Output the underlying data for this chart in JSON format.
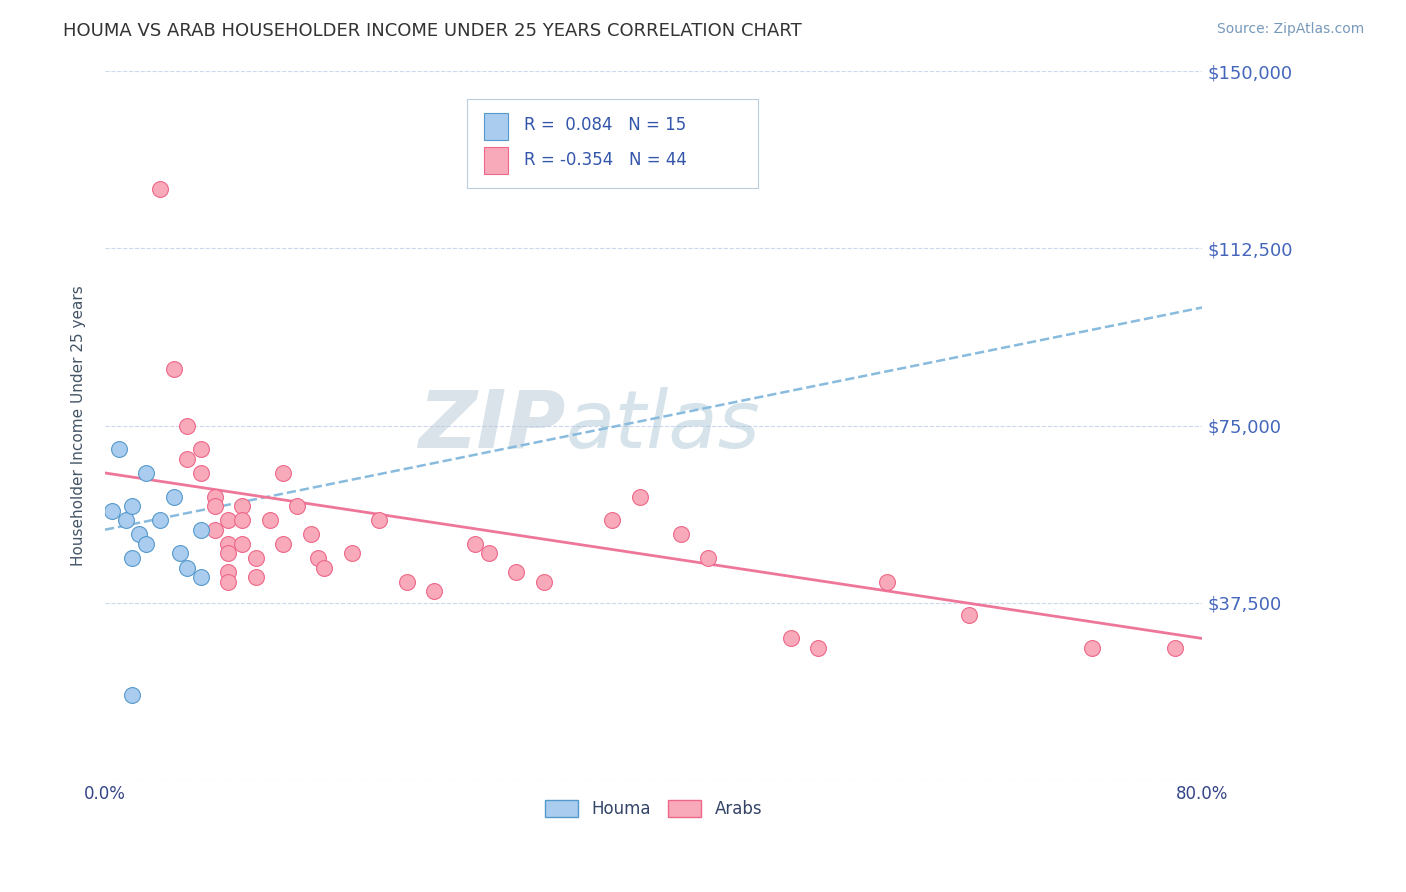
{
  "title": "HOUMA VS ARAB HOUSEHOLDER INCOME UNDER 25 YEARS CORRELATION CHART",
  "source": "Source: ZipAtlas.com",
  "ylabel": "Householder Income Under 25 years",
  "xlim": [
    0.0,
    0.8
  ],
  "ylim": [
    0,
    150000
  ],
  "yticks": [
    0,
    37500,
    75000,
    112500,
    150000
  ],
  "ytick_labels": [
    "",
    "$37,500",
    "$75,000",
    "$112,500",
    "$150,000"
  ],
  "xticks": [
    0.0,
    0.1,
    0.2,
    0.3,
    0.4,
    0.5,
    0.6,
    0.7,
    0.8
  ],
  "xtick_labels": [
    "0.0%",
    "",
    "",
    "",
    "",
    "",
    "",
    "",
    "80.0%"
  ],
  "houma_color": "#aaccee",
  "arab_color": "#f8aabb",
  "houma_edge": "#5599cc",
  "arab_edge": "#ee6688",
  "trend_blue_color": "#88bbdd",
  "trend_pink_color": "#ee7799",
  "R_houma": 0.084,
  "N_houma": 15,
  "R_arab": -0.354,
  "N_arab": 44,
  "watermark_zip": "ZIP",
  "watermark_atlas": "atlas",
  "legend_houma": "Houma",
  "legend_arab": "Arabs",
  "background_color": "#ffffff",
  "grid_color": "#ccd8ee",
  "houma_x": [
    0.005,
    0.01,
    0.015,
    0.02,
    0.02,
    0.025,
    0.03,
    0.03,
    0.04,
    0.05,
    0.055,
    0.06,
    0.07,
    0.07,
    0.02
  ],
  "houma_y": [
    57000,
    70000,
    55000,
    58000,
    47000,
    52000,
    65000,
    50000,
    55000,
    60000,
    48000,
    45000,
    53000,
    43000,
    18000
  ],
  "arab_x": [
    0.04,
    0.05,
    0.06,
    0.06,
    0.07,
    0.07,
    0.08,
    0.08,
    0.08,
    0.09,
    0.09,
    0.09,
    0.09,
    0.09,
    0.1,
    0.1,
    0.1,
    0.11,
    0.11,
    0.12,
    0.13,
    0.13,
    0.14,
    0.15,
    0.155,
    0.16,
    0.18,
    0.2,
    0.22,
    0.24,
    0.27,
    0.28,
    0.3,
    0.32,
    0.37,
    0.39,
    0.42,
    0.44,
    0.5,
    0.52,
    0.57,
    0.63,
    0.72,
    0.78
  ],
  "arab_y": [
    125000,
    87000,
    75000,
    68000,
    70000,
    65000,
    60000,
    58000,
    53000,
    55000,
    50000,
    48000,
    44000,
    42000,
    58000,
    55000,
    50000,
    47000,
    43000,
    55000,
    65000,
    50000,
    58000,
    52000,
    47000,
    45000,
    48000,
    55000,
    42000,
    40000,
    50000,
    48000,
    44000,
    42000,
    55000,
    60000,
    52000,
    47000,
    30000,
    28000,
    42000,
    35000,
    28000,
    28000
  ],
  "houma_trend_x0": 0.0,
  "houma_trend_y0": 53000,
  "houma_trend_x1": 0.8,
  "houma_trend_y1": 100000,
  "arab_trend_x0": 0.0,
  "arab_trend_y0": 65000,
  "arab_trend_x1": 0.8,
  "arab_trend_y1": 30000
}
